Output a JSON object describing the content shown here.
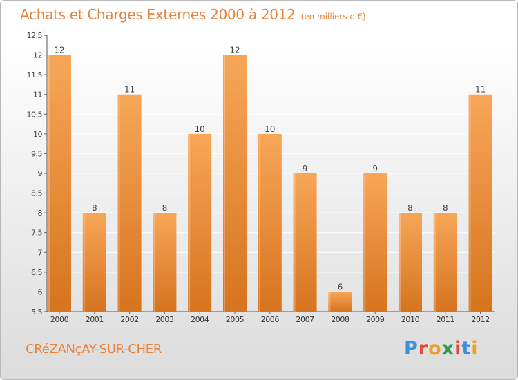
{
  "header": {
    "title": "Achats et Charges Externes 2000 à 2012",
    "unit": "(en milliers d'€)"
  },
  "footer": {
    "commune": "CRéZANçAY-SUR-CHER",
    "logo_letters": [
      {
        "ch": "P",
        "color": "#3a8fd8"
      },
      {
        "ch": "r",
        "color": "#e14b3b"
      },
      {
        "ch": "o",
        "color": "#e8a02a"
      },
      {
        "ch": "x",
        "color": "#2f9e4a"
      },
      {
        "ch": "i",
        "color": "#e14b3b"
      },
      {
        "ch": "t",
        "color": "#3a8fd8"
      },
      {
        "ch": "i",
        "color": "#e8a02a"
      }
    ]
  },
  "colors": {
    "bar_top": "#f7a658",
    "bar_bottom": "#d7741e",
    "text_accent": "#e8823a",
    "grid": "#ffffff"
  },
  "chart_data": {
    "type": "bar",
    "title": "Achats et Charges Externes 2000 à 2012",
    "subtitle": "(en milliers d'€)",
    "categories": [
      "2000",
      "2001",
      "2002",
      "2003",
      "2004",
      "2005",
      "2006",
      "2007",
      "2008",
      "2009",
      "2010",
      "2011",
      "2012"
    ],
    "values": [
      12,
      8,
      11,
      8,
      10,
      12,
      10,
      9,
      6,
      9,
      8,
      8,
      11
    ],
    "value_labels": [
      "12",
      "8",
      "11",
      "8",
      "10",
      "12",
      "10",
      "9",
      "6",
      "9",
      "8",
      "8",
      "11"
    ],
    "ylim": [
      5.5,
      12.5
    ],
    "yticks": [
      5.5,
      6,
      6.5,
      7,
      7.5,
      8,
      8.5,
      9,
      9.5,
      10,
      10.5,
      11,
      11.5,
      12,
      12.5
    ],
    "ytick_labels": [
      "5.5",
      "6",
      "6.5",
      "7",
      "7.5",
      "8",
      "8.5",
      "9",
      "9.5",
      "10",
      "10.5",
      "11",
      "11.5",
      "12",
      "12.5"
    ],
    "grid": true,
    "legend": "none"
  }
}
